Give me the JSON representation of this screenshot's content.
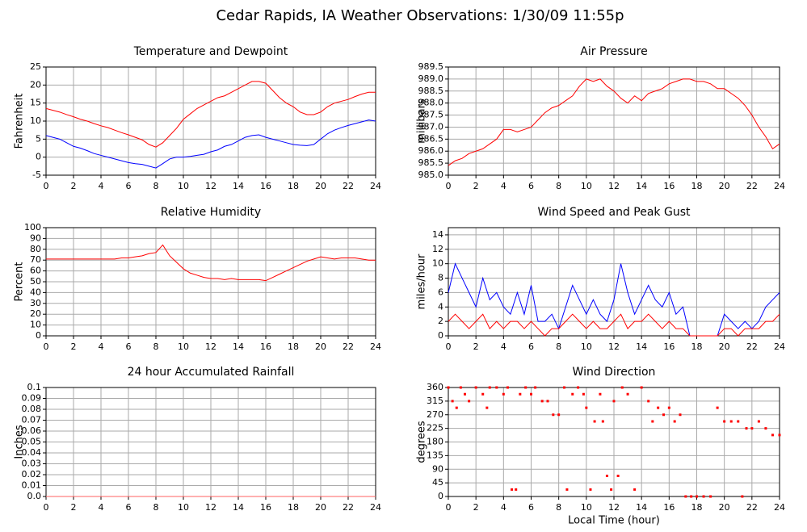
{
  "title": "Cedar Rapids, IA Weather Observations: 1/30/09 11:55p",
  "chart_data": [
    {
      "type": "line",
      "title": "Temperature and Dewpoint",
      "ylabel": "Fahrenheit",
      "grid": true,
      "x": [
        0,
        0.5,
        1,
        1.5,
        2,
        2.5,
        3,
        3.5,
        4,
        4.5,
        5,
        5.5,
        6,
        6.5,
        7,
        7.5,
        8,
        8.5,
        9,
        9.5,
        10,
        10.5,
        11,
        11.5,
        12,
        12.5,
        13,
        13.5,
        14,
        14.5,
        15,
        15.5,
        16,
        16.5,
        17,
        17.5,
        18,
        18.5,
        19,
        19.5,
        20,
        20.5,
        21,
        21.5,
        22,
        22.5,
        23,
        23.5,
        24
      ],
      "xlim": [
        0,
        24
      ],
      "xticks": [
        0,
        2,
        4,
        6,
        8,
        10,
        12,
        14,
        16,
        18,
        20,
        22,
        24
      ],
      "ylim": [
        -5,
        25
      ],
      "yticks": [
        -5,
        0,
        5,
        10,
        15,
        20,
        25
      ],
      "series": [
        {
          "color": "#ff0000",
          "values": [
            13.5,
            13,
            12.5,
            11.8,
            11.2,
            10.5,
            10,
            9.3,
            8.7,
            8.2,
            7.5,
            6.8,
            6.2,
            5.5,
            4.8,
            3.5,
            2.8,
            4,
            6,
            8,
            10.5,
            12,
            13.5,
            14.5,
            15.5,
            16.5,
            17,
            18,
            19,
            20,
            21,
            21,
            20.5,
            18.5,
            16.5,
            15,
            14,
            12.5,
            11.8,
            11.8,
            12.5,
            14,
            15,
            15.5,
            16,
            16.8,
            17.5,
            18,
            18
          ]
        },
        {
          "color": "#0000ff",
          "values": [
            6,
            5.5,
            5,
            4,
            3,
            2.5,
            1.8,
            1,
            0.5,
            0,
            -0.5,
            -1,
            -1.5,
            -1.8,
            -2,
            -2.5,
            -3,
            -1.8,
            -0.5,
            0,
            0,
            0.2,
            0.5,
            0.8,
            1.5,
            2,
            3,
            3.5,
            4.5,
            5.5,
            6,
            6.2,
            5.5,
            5,
            4.5,
            4,
            3.5,
            3.3,
            3.2,
            3.5,
            5,
            6.5,
            7.5,
            8.2,
            8.8,
            9.3,
            9.8,
            10.3,
            10
          ]
        }
      ]
    },
    {
      "type": "line",
      "title": "Air Pressure",
      "ylabel": "millibars",
      "grid": true,
      "x": [
        0,
        0.5,
        1,
        1.5,
        2,
        2.5,
        3,
        3.5,
        4,
        4.5,
        5,
        5.5,
        6,
        6.5,
        7,
        7.5,
        8,
        8.5,
        9,
        9.5,
        10,
        10.5,
        11,
        11.5,
        12,
        12.5,
        13,
        13.5,
        14,
        14.5,
        15,
        15.5,
        16,
        16.5,
        17,
        17.5,
        18,
        18.5,
        19,
        19.5,
        20,
        20.5,
        21,
        21.5,
        22,
        22.5,
        23,
        23.5,
        24
      ],
      "xlim": [
        0,
        24
      ],
      "xticks": [
        0,
        2,
        4,
        6,
        8,
        10,
        12,
        14,
        16,
        18,
        20,
        22,
        24
      ],
      "ylim": [
        985,
        989.5
      ],
      "yticks": [
        {
          "value": 985,
          "label": "985.0"
        },
        985.5,
        {
          "value": 986,
          "label": "986.0"
        },
        986.5,
        {
          "value": 987,
          "label": "987.0"
        },
        987.5,
        {
          "value": 988,
          "label": "988.0"
        },
        988.5,
        {
          "value": 989,
          "label": "989.0"
        },
        989.5
      ],
      "series": [
        {
          "color": "#ff0000",
          "values": [
            985.4,
            985.6,
            985.7,
            985.9,
            986.0,
            986.1,
            986.3,
            986.5,
            986.9,
            986.9,
            986.8,
            986.9,
            987.0,
            987.3,
            987.6,
            987.8,
            987.9,
            988.1,
            988.3,
            988.7,
            989.0,
            988.9,
            989.0,
            988.7,
            988.5,
            988.2,
            988.0,
            988.3,
            988.1,
            988.4,
            988.5,
            988.6,
            988.8,
            988.9,
            989.0,
            989.0,
            988.9,
            988.9,
            988.8,
            988.6,
            988.6,
            988.4,
            988.2,
            987.9,
            987.5,
            987.0,
            986.6,
            986.1,
            986.3
          ]
        }
      ]
    },
    {
      "type": "line",
      "title": "Relative Humidity",
      "ylabel": "Percent",
      "grid": true,
      "x": [
        0,
        0.5,
        1,
        1.5,
        2,
        2.5,
        3,
        3.5,
        4,
        4.5,
        5,
        5.5,
        6,
        6.5,
        7,
        7.5,
        8,
        8.5,
        9,
        9.5,
        10,
        10.5,
        11,
        11.5,
        12,
        12.5,
        13,
        13.5,
        14,
        14.5,
        15,
        15.5,
        16,
        16.5,
        17,
        17.5,
        18,
        18.5,
        19,
        19.5,
        20,
        20.5,
        21,
        21.5,
        22,
        22.5,
        23,
        23.5,
        24
      ],
      "xlim": [
        0,
        24
      ],
      "xticks": [
        0,
        2,
        4,
        6,
        8,
        10,
        12,
        14,
        16,
        18,
        20,
        22,
        24
      ],
      "ylim": [
        0,
        100
      ],
      "yticks": [
        0,
        10,
        20,
        30,
        40,
        50,
        60,
        70,
        80,
        90,
        100
      ],
      "series": [
        {
          "color": "#ff0000",
          "values": [
            71,
            71,
            71,
            71,
            71,
            71,
            71,
            71,
            71,
            71,
            71,
            72,
            72,
            73,
            74,
            76,
            77,
            84,
            74,
            68,
            62,
            58,
            56,
            54,
            53,
            53,
            52,
            53,
            52,
            52,
            52,
            52,
            51,
            54,
            57,
            60,
            63,
            66,
            69,
            71,
            73,
            72,
            71,
            72,
            72,
            72,
            71,
            70,
            70
          ]
        }
      ]
    },
    {
      "type": "line",
      "title": "Wind Speed and Peak Gust",
      "ylabel": "miles/hour",
      "grid": true,
      "x": [
        0,
        0.5,
        1,
        1.5,
        2,
        2.5,
        3,
        3.5,
        4,
        4.5,
        5,
        5.5,
        6,
        6.5,
        7,
        7.5,
        8,
        8.5,
        9,
        9.5,
        10,
        10.5,
        11,
        11.5,
        12,
        12.5,
        13,
        13.5,
        14,
        14.5,
        15,
        15.5,
        16,
        16.5,
        17,
        17.5,
        18,
        18.5,
        19,
        19.5,
        20,
        20.5,
        21,
        21.5,
        22,
        22.5,
        23,
        23.5,
        24
      ],
      "xlim": [
        0,
        24
      ],
      "xticks": [
        0,
        2,
        4,
        6,
        8,
        10,
        12,
        14,
        16,
        18,
        20,
        22,
        24
      ],
      "ylim": [
        0,
        15
      ],
      "yticks": [
        0,
        2,
        4,
        6,
        8,
        10,
        12,
        14
      ],
      "series": [
        {
          "color": "#0000ff",
          "values": [
            6,
            10,
            8,
            6,
            4,
            8,
            5,
            6,
            4,
            3,
            6,
            3,
            7,
            2,
            2,
            3,
            1,
            4,
            7,
            5,
            3,
            5,
            3,
            2,
            5,
            10,
            6,
            3,
            5,
            7,
            5,
            4,
            6,
            3,
            4,
            0,
            0,
            0,
            0,
            0,
            3,
            2,
            1,
            2,
            1,
            2,
            4,
            5,
            6
          ]
        },
        {
          "color": "#ff0000",
          "values": [
            2,
            3,
            2,
            1,
            2,
            3,
            1,
            2,
            1,
            2,
            2,
            1,
            2,
            1,
            0,
            1,
            1,
            2,
            3,
            2,
            1,
            2,
            1,
            1,
            2,
            3,
            1,
            2,
            2,
            3,
            2,
            1,
            2,
            1,
            1,
            0,
            0,
            0,
            0,
            0,
            1,
            1,
            0,
            1,
            1,
            1,
            2,
            2,
            3
          ]
        }
      ]
    },
    {
      "type": "line",
      "title": "24 hour Accumulated Rainfall",
      "ylabel": "Inches",
      "grid": true,
      "x": [
        0,
        24
      ],
      "xlim": [
        0,
        24
      ],
      "xticks": [
        0,
        2,
        4,
        6,
        8,
        10,
        12,
        14,
        16,
        18,
        20,
        22,
        24
      ],
      "ylim": [
        0,
        0.1
      ],
      "yticks": [
        {
          "value": 0,
          "label": "0.0"
        },
        0.01,
        0.02,
        0.03,
        0.04,
        0.05,
        0.06,
        0.07,
        0.08,
        0.09,
        0.1
      ],
      "series": [
        {
          "color": "#ff6060",
          "values": [
            0,
            0
          ]
        }
      ]
    },
    {
      "type": "scatter",
      "title": "Wind Direction",
      "ylabel": "degrees",
      "xlabel": "Local Time (hour)",
      "grid": true,
      "color": "#ff0000",
      "x": [
        0,
        0.3,
        0.6,
        0.9,
        1.2,
        1.5,
        2,
        2.5,
        2.8,
        3,
        3.5,
        4,
        4.3,
        4.6,
        4.9,
        5.2,
        5.6,
        6,
        6.3,
        6.8,
        7.2,
        7.6,
        8,
        8.4,
        8.6,
        9,
        9.4,
        9.8,
        10,
        10.3,
        10.6,
        11,
        11.2,
        11.5,
        11.8,
        12,
        12.3,
        12.6,
        13,
        13.5,
        14,
        14.5,
        14.8,
        15.2,
        15.6,
        16,
        16.4,
        16.8,
        17.2,
        17.6,
        18,
        18.5,
        19,
        19.5,
        20,
        20.5,
        21,
        21.3,
        21.6,
        22,
        22.5,
        23,
        23.5,
        24
      ],
      "values": [
        360,
        315,
        293,
        360,
        338,
        315,
        360,
        338,
        293,
        360,
        360,
        338,
        360,
        23,
        23,
        338,
        360,
        338,
        360,
        315,
        315,
        270,
        270,
        360,
        23,
        338,
        360,
        338,
        293,
        23,
        248,
        338,
        248,
        68,
        23,
        315,
        68,
        360,
        338,
        23,
        360,
        315,
        248,
        293,
        270,
        293,
        248,
        270,
        0,
        0,
        0,
        0,
        0,
        293,
        248,
        248,
        248,
        0,
        225,
        225,
        248,
        225,
        203,
        203
      ],
      "xlim": [
        0,
        24
      ],
      "xticks": [
        0,
        2,
        4,
        6,
        8,
        10,
        12,
        14,
        16,
        18,
        20,
        22,
        24
      ],
      "ylim": [
        0,
        360
      ],
      "yticks": [
        0,
        45,
        90,
        135,
        180,
        225,
        270,
        315,
        360
      ]
    }
  ]
}
